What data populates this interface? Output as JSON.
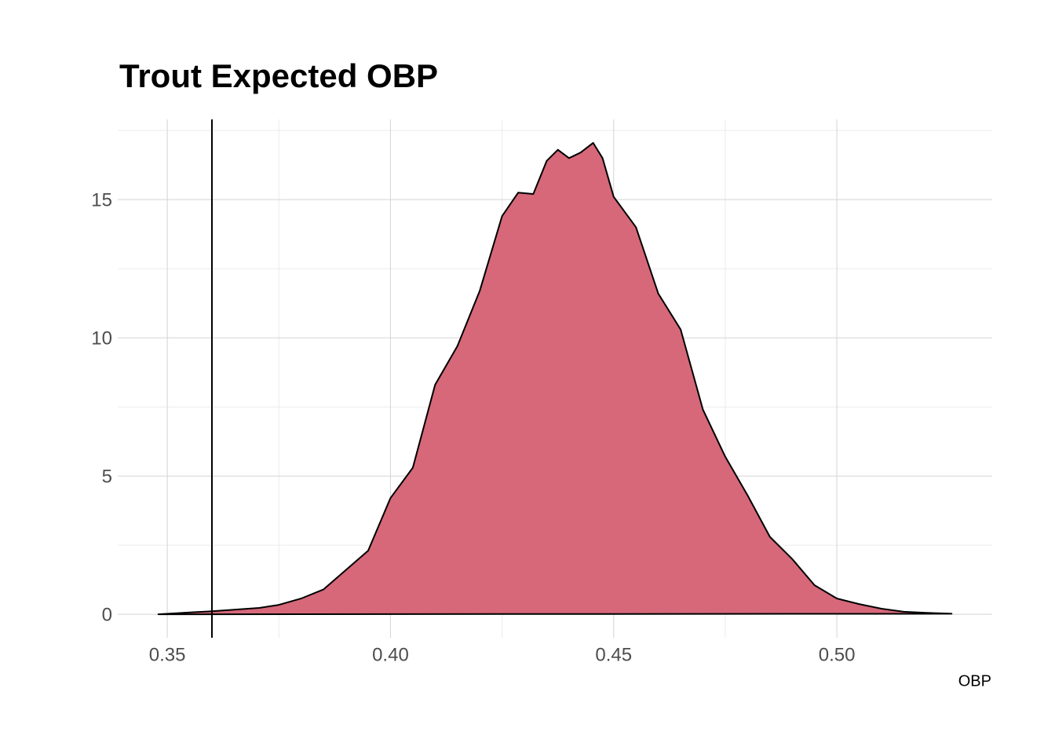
{
  "chart_data": {
    "type": "area",
    "title": "Trout Expected OBP",
    "xlabel": "OBP",
    "x": [
      0.348,
      0.36,
      0.3706,
      0.375,
      0.38,
      0.385,
      0.39,
      0.395,
      0.4,
      0.405,
      0.41,
      0.415,
      0.42,
      0.425,
      0.4286,
      0.432,
      0.435,
      0.4375,
      0.44,
      0.4426,
      0.4454,
      0.4475,
      0.45,
      0.455,
      0.46,
      0.465,
      0.47,
      0.475,
      0.48,
      0.485,
      0.49,
      0.495,
      0.5,
      0.505,
      0.51,
      0.515,
      0.52,
      0.5257
    ],
    "values": [
      0,
      0.11,
      0.23,
      0.34,
      0.57,
      0.9,
      1.6,
      2.3,
      4.2,
      5.3,
      8.3,
      9.7,
      11.7,
      14.4,
      15.25,
      15.2,
      16.4,
      16.8,
      16.5,
      16.7,
      17.05,
      16.5,
      15.1,
      14.0,
      11.6,
      10.3,
      7.4,
      5.7,
      4.3,
      2.8,
      2.0,
      1.05,
      0.57,
      0.37,
      0.2,
      0.09,
      0.05,
      0.02
    ],
    "color": "#d6687a",
    "line_color": "#000000",
    "vline": 0.36,
    "xlim": [
      0.3389,
      0.5348
    ],
    "ylim": [
      -0.85,
      17.9
    ],
    "xticks": [
      {
        "value": 0.35,
        "label": "0.35"
      },
      {
        "value": 0.4,
        "label": "0.40"
      },
      {
        "value": 0.45,
        "label": "0.45"
      },
      {
        "value": 0.5,
        "label": "0.50"
      }
    ],
    "yticks": [
      0,
      5,
      10,
      15
    ],
    "minor_xticks": [
      0.375,
      0.425,
      0.475
    ],
    "minor_yticks": [
      2.5,
      7.5,
      12.5,
      17.5
    ],
    "grid": true
  }
}
